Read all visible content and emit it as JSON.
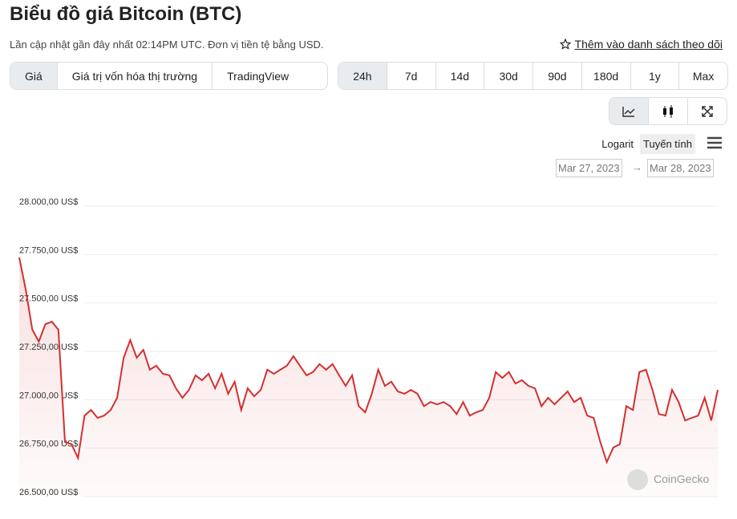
{
  "header": {
    "title": "Biểu đồ giá Bitcoin (BTC)",
    "subtitle": "Lần cập nhật gần đây nhất 02:14PM UTC. Đơn vị tiền tệ bằng USD.",
    "watchlist": "Thêm vào danh sách theo dõi"
  },
  "tabs": [
    "Giá",
    "Giá trị vốn hóa thị trường",
    "TradingView"
  ],
  "ranges": [
    "24h",
    "7d",
    "14d",
    "30d",
    "90d",
    "180d",
    "1y",
    "Max"
  ],
  "scale": [
    "Logarit",
    "Tuyến tính"
  ],
  "date_range": {
    "from": "Mar 27, 2023",
    "separator": "→",
    "to": "Mar 28, 2023"
  },
  "watermark": "CoinGecko",
  "chart_data": {
    "type": "line",
    "color": "#d32f2f",
    "grid": true,
    "ylim": [
      26500,
      28000
    ],
    "yticks": [
      {
        "value": 28000,
        "label": "28.000,00 US$"
      },
      {
        "value": 27750,
        "label": "27.750,00 US$"
      },
      {
        "value": 27500,
        "label": "27.500,00 US$"
      },
      {
        "value": 27250,
        "label": "27.250,00 US$"
      },
      {
        "value": 27000,
        "label": "27.000,00 US$"
      },
      {
        "value": 26750,
        "label": "26.750,00 US$"
      },
      {
        "value": 26500,
        "label": "26.500,00 US$"
      }
    ],
    "values": [
      27735,
      27569,
      27362,
      27300,
      27391,
      27403,
      27362,
      26782,
      26770,
      26699,
      26918,
      26947,
      26906,
      26918,
      26947,
      27010,
      27217,
      27308,
      27217,
      27258,
      27155,
      27176,
      27134,
      27126,
      27059,
      27010,
      27051,
      27126,
      27101,
      27134,
      27059,
      27134,
      27031,
      27093,
      26947,
      27059,
      27018,
      27051,
      27155,
      27134,
      27155,
      27176,
      27225,
      27176,
      27126,
      27143,
      27184,
      27155,
      27184,
      27126,
      27072,
      27126,
      26967,
      26935,
      27031,
      27155,
      27072,
      27093,
      27043,
      27031,
      27051,
      27031,
      26967,
      26988,
      26976,
      26988,
      26967,
      26926,
      26988,
      26918,
      26935,
      26947,
      27010,
      27143,
      27113,
      27143,
      27084,
      27101,
      27072,
      27059,
      26967,
      27010,
      26976,
      27010,
      27043,
      26988,
      27010,
      26918,
      26906,
      26782,
      26678,
      26753,
      26770,
      26967,
      26947,
      27143,
      27155,
      27051,
      26926,
      26918,
      27051,
      26988,
      26893,
      26906,
      26918,
      27010,
      26893,
      27051
    ]
  }
}
